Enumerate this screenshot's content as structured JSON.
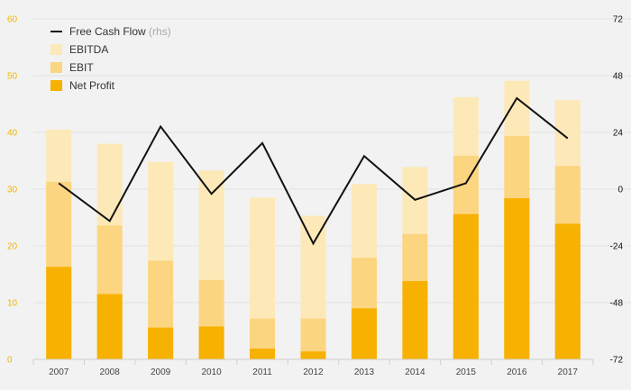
{
  "chart_data": {
    "type": "bar",
    "categories": [
      "2007",
      "2008",
      "2009",
      "2010",
      "2011",
      "2012",
      "2013",
      "2014",
      "2015",
      "2016",
      "2017"
    ],
    "series": [
      {
        "name": "EBITDA",
        "kind": "bar",
        "axis": "left",
        "color": "#fde9b8",
        "values": [
          40.5,
          38,
          34.8,
          33.3,
          28.5,
          25.3,
          30.9,
          33.9,
          46.2,
          49.1,
          45.7
        ]
      },
      {
        "name": "EBIT",
        "kind": "bar",
        "axis": "left",
        "color": "#fcd580",
        "values": [
          31.3,
          23.6,
          17.4,
          14,
          7.2,
          7.2,
          17.9,
          22.1,
          35.9,
          39.4,
          34.1
        ]
      },
      {
        "name": "Net Profit",
        "kind": "bar",
        "axis": "left",
        "color": "#f7b100",
        "values": [
          16.3,
          11.5,
          5.6,
          5.8,
          1.9,
          1.4,
          9,
          13.8,
          25.6,
          28.4,
          23.9
        ]
      },
      {
        "name": "Free Cash Flow",
        "kind": "line",
        "axis": "right",
        "color": "#111111",
        "values": [
          2.5,
          -13.5,
          26.5,
          -2,
          19.5,
          -23,
          14,
          -4.5,
          2.5,
          38.5,
          21.5
        ]
      }
    ],
    "left_axis": {
      "min": 0,
      "max": 60,
      "ticks": [
        0,
        10,
        20,
        30,
        40,
        50,
        60
      ],
      "color": "#f2b500"
    },
    "right_axis": {
      "min": -72,
      "max": 72,
      "ticks": [
        -72,
        -48,
        -24,
        0,
        24,
        48,
        72
      ],
      "color": "#111111"
    },
    "legend": {
      "placement": "top-left",
      "items": [
        {
          "label": "Free Cash Flow",
          "note": "(rhs)",
          "kind": "line",
          "color": "#111111"
        },
        {
          "label": "EBITDA",
          "note": "",
          "kind": "box",
          "color": "#fde9b8"
        },
        {
          "label": "EBIT",
          "note": "",
          "kind": "box",
          "color": "#fcd580"
        },
        {
          "label": "Net Profit",
          "note": "",
          "kind": "box",
          "color": "#f7b100"
        }
      ]
    },
    "grid": true
  }
}
